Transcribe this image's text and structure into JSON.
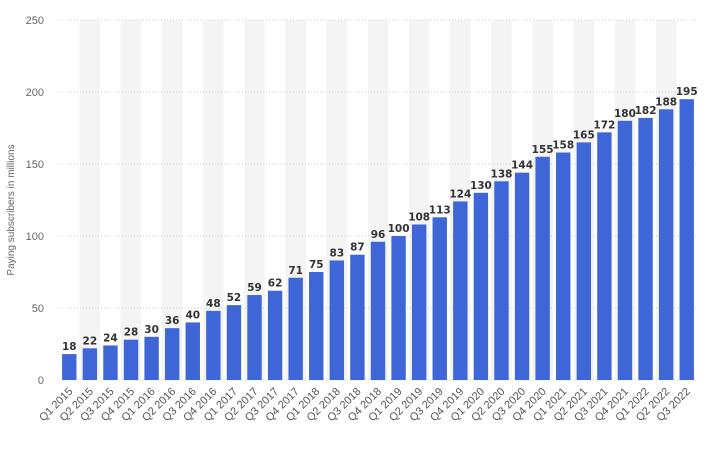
{
  "chart_data": {
    "type": "bar",
    "title": "",
    "xlabel": "",
    "ylabel": "Paying subscribers in millions",
    "ylim": [
      0,
      250
    ],
    "yticks": [
      0,
      50,
      100,
      150,
      200,
      250
    ],
    "grid": true,
    "bar_color": "#3f66d6",
    "categories": [
      "Q1 2015",
      "Q2 2015",
      "Q3 2015",
      "Q4 2015",
      "Q1 2016",
      "Q2 2016",
      "Q3 2016",
      "Q4 2016",
      "Q1 2017",
      "Q2 2017",
      "Q3 2017",
      "Q4 2017",
      "Q1 2018",
      "Q2 2018",
      "Q3 2018",
      "Q4 2018",
      "Q1 2019",
      "Q2 2019",
      "Q3 2019",
      "Q4 2019",
      "Q1 2020",
      "Q2 2020",
      "Q3 2020",
      "Q4 2020",
      "Q1 2021",
      "Q2 2021",
      "Q3 2021",
      "Q4 2021",
      "Q1 2022",
      "Q2 2022",
      "Q3 2022"
    ],
    "values": [
      18,
      22,
      24,
      28,
      30,
      36,
      40,
      48,
      52,
      59,
      62,
      71,
      75,
      83,
      87,
      96,
      100,
      108,
      113,
      124,
      130,
      138,
      144,
      155,
      158,
      165,
      172,
      180,
      182,
      188,
      195
    ]
  }
}
